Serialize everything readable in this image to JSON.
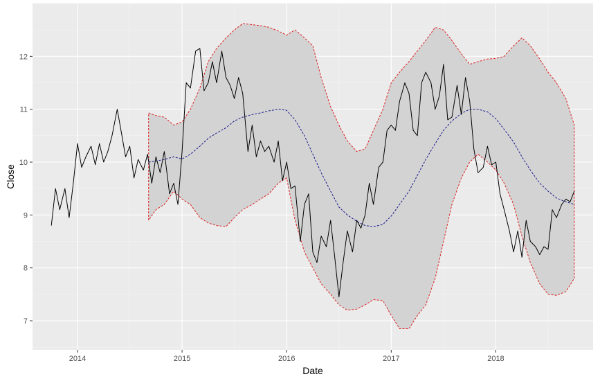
{
  "chart_data": {
    "type": "line",
    "title": "",
    "xlabel": "Date",
    "ylabel": "Close",
    "xlim": [
      2013.57,
      2018.93
    ],
    "ylim": [
      6.45,
      13.0
    ],
    "x_ticks": [
      {
        "value": 2014,
        "label": "2014"
      },
      {
        "value": 2015,
        "label": "2015"
      },
      {
        "value": 2016,
        "label": "2016"
      },
      {
        "value": 2017,
        "label": "2017"
      },
      {
        "value": 2018,
        "label": "2018"
      }
    ],
    "y_ticks": [
      {
        "value": 7,
        "label": "7"
      },
      {
        "value": 8,
        "label": "8"
      },
      {
        "value": 9,
        "label": "9"
      },
      {
        "value": 10,
        "label": "10"
      },
      {
        "value": 11,
        "label": "11"
      },
      {
        "value": 12,
        "label": "12"
      }
    ],
    "grid": true,
    "legend": "none",
    "colors": {
      "panel_background": "#ebebeb",
      "grid_major": "#ffffff",
      "grid_minor": "#f5f5f5",
      "band_fill": "#d3d3d3",
      "band_edge": "#dd2222",
      "close_line": "#000000",
      "mid_line": "#1a1a8c"
    },
    "series": [
      {
        "role": "close",
        "style": "solid",
        "x": [
          2013.75,
          2013.79,
          2013.83,
          2013.88,
          2013.92,
          2013.96,
          2014.0,
          2014.04,
          2014.08,
          2014.13,
          2014.17,
          2014.21,
          2014.25,
          2014.29,
          2014.33,
          2014.38,
          2014.42,
          2014.46,
          2014.5,
          2014.54,
          2014.58,
          2014.63,
          2014.67,
          2014.71,
          2014.75,
          2014.79,
          2014.83,
          2014.88,
          2014.92,
          2014.96,
          2015.0,
          2015.04,
          2015.08,
          2015.13,
          2015.17,
          2015.21,
          2015.25,
          2015.29,
          2015.33,
          2015.38,
          2015.42,
          2015.46,
          2015.5,
          2015.54,
          2015.58,
          2015.63,
          2015.67,
          2015.71,
          2015.75,
          2015.79,
          2015.83,
          2015.88,
          2015.92,
          2015.96,
          2016.0,
          2016.04,
          2016.08,
          2016.13,
          2016.17,
          2016.21,
          2016.25,
          2016.29,
          2016.33,
          2016.38,
          2016.42,
          2016.46,
          2016.5,
          2016.54,
          2016.58,
          2016.63,
          2016.67,
          2016.71,
          2016.75,
          2016.79,
          2016.83,
          2016.88,
          2016.92,
          2016.96,
          2017.0,
          2017.04,
          2017.08,
          2017.13,
          2017.17,
          2017.21,
          2017.25,
          2017.29,
          2017.33,
          2017.38,
          2017.42,
          2017.46,
          2017.5,
          2017.54,
          2017.58,
          2017.63,
          2017.67,
          2017.71,
          2017.75,
          2017.79,
          2017.83,
          2017.88,
          2017.92,
          2017.96,
          2018.0,
          2018.04,
          2018.08,
          2018.13,
          2018.17,
          2018.21,
          2018.25,
          2018.29,
          2018.33,
          2018.38,
          2018.42,
          2018.46,
          2018.5,
          2018.54,
          2018.58,
          2018.63,
          2018.67,
          2018.71,
          2018.75
        ],
        "y": [
          8.8,
          9.5,
          9.1,
          9.5,
          8.95,
          9.6,
          10.35,
          9.9,
          10.1,
          10.3,
          9.95,
          10.35,
          10.0,
          10.2,
          10.5,
          11.0,
          10.55,
          10.1,
          10.3,
          9.7,
          10.05,
          9.85,
          10.15,
          9.6,
          10.1,
          9.8,
          10.2,
          9.4,
          9.6,
          9.2,
          10.2,
          11.5,
          11.4,
          12.1,
          12.15,
          11.35,
          11.5,
          11.9,
          11.5,
          12.1,
          11.6,
          11.45,
          11.2,
          11.6,
          11.3,
          10.2,
          10.7,
          10.1,
          10.4,
          10.2,
          10.3,
          10.0,
          10.4,
          9.65,
          10.0,
          9.5,
          9.55,
          8.5,
          9.2,
          9.4,
          8.3,
          8.1,
          8.6,
          8.4,
          8.9,
          8.2,
          7.45,
          8.1,
          8.7,
          8.3,
          8.9,
          8.75,
          9.0,
          9.6,
          9.2,
          9.9,
          10.0,
          10.6,
          10.7,
          10.6,
          11.15,
          11.5,
          11.3,
          10.6,
          10.5,
          11.5,
          11.7,
          11.5,
          11.0,
          11.25,
          11.85,
          10.8,
          10.85,
          11.45,
          10.9,
          11.6,
          11.15,
          10.25,
          9.8,
          9.9,
          10.3,
          9.95,
          10.0,
          9.4,
          9.1,
          8.7,
          8.3,
          8.7,
          8.2,
          8.9,
          8.5,
          8.4,
          8.25,
          8.4,
          8.35,
          9.1,
          8.95,
          9.2,
          9.3,
          9.25,
          9.45
        ]
      },
      {
        "role": "band-center",
        "style": "dashed",
        "x": [
          2014.68,
          2014.75,
          2014.83,
          2014.92,
          2015.0,
          2015.08,
          2015.17,
          2015.25,
          2015.33,
          2015.42,
          2015.5,
          2015.58,
          2015.67,
          2015.75,
          2015.83,
          2015.92,
          2016.0,
          2016.08,
          2016.17,
          2016.25,
          2016.33,
          2016.42,
          2016.5,
          2016.58,
          2016.67,
          2016.75,
          2016.83,
          2016.92,
          2017.0,
          2017.08,
          2017.17,
          2017.25,
          2017.33,
          2017.42,
          2017.5,
          2017.58,
          2017.67,
          2017.75,
          2017.83,
          2017.92,
          2018.0,
          2018.08,
          2018.17,
          2018.25,
          2018.33,
          2018.42,
          2018.5,
          2018.58,
          2018.67,
          2018.75
        ],
        "y": [
          10.0,
          10.02,
          10.05,
          10.1,
          10.06,
          10.15,
          10.3,
          10.45,
          10.55,
          10.65,
          10.78,
          10.85,
          10.9,
          10.93,
          10.97,
          11.0,
          10.98,
          10.8,
          10.5,
          10.15,
          9.8,
          9.45,
          9.15,
          9.0,
          8.88,
          8.8,
          8.78,
          8.82,
          8.98,
          9.2,
          9.45,
          9.75,
          10.05,
          10.35,
          10.6,
          10.78,
          10.92,
          11.0,
          11.0,
          10.95,
          10.82,
          10.62,
          10.38,
          10.1,
          9.85,
          9.6,
          9.45,
          9.32,
          9.25,
          9.2
        ]
      },
      {
        "role": "band-upper",
        "style": "dashed",
        "x": [
          2014.68,
          2014.75,
          2014.83,
          2014.92,
          2015.0,
          2015.08,
          2015.17,
          2015.25,
          2015.33,
          2015.42,
          2015.5,
          2015.58,
          2015.67,
          2015.75,
          2015.83,
          2015.92,
          2016.0,
          2016.08,
          2016.17,
          2016.25,
          2016.33,
          2016.42,
          2016.5,
          2016.58,
          2016.67,
          2016.75,
          2016.83,
          2016.92,
          2017.0,
          2017.08,
          2017.17,
          2017.25,
          2017.33,
          2017.42,
          2017.5,
          2017.58,
          2017.67,
          2017.75,
          2017.83,
          2017.92,
          2018.0,
          2018.08,
          2018.17,
          2018.25,
          2018.33,
          2018.42,
          2018.5,
          2018.58,
          2018.67,
          2018.75
        ],
        "y": [
          10.93,
          10.88,
          10.85,
          10.7,
          10.76,
          11.0,
          11.4,
          11.9,
          12.15,
          12.35,
          12.5,
          12.62,
          12.6,
          12.58,
          12.55,
          12.48,
          12.4,
          12.5,
          12.35,
          12.2,
          11.6,
          11.05,
          10.7,
          10.4,
          10.2,
          10.25,
          10.6,
          11.0,
          11.5,
          11.7,
          11.9,
          12.1,
          12.3,
          12.55,
          12.5,
          12.3,
          12.05,
          11.85,
          11.9,
          11.95,
          11.96,
          12.0,
          12.2,
          12.35,
          12.2,
          11.95,
          11.7,
          11.5,
          11.2,
          10.7
        ]
      },
      {
        "role": "band-lower",
        "style": "dashed",
        "x": [
          2014.68,
          2014.75,
          2014.83,
          2014.92,
          2015.0,
          2015.08,
          2015.17,
          2015.25,
          2015.33,
          2015.42,
          2015.5,
          2015.58,
          2015.67,
          2015.75,
          2015.83,
          2015.92,
          2016.0,
          2016.08,
          2016.17,
          2016.25,
          2016.33,
          2016.42,
          2016.5,
          2016.58,
          2016.67,
          2016.75,
          2016.83,
          2016.92,
          2017.0,
          2017.08,
          2017.17,
          2017.25,
          2017.33,
          2017.42,
          2017.5,
          2017.58,
          2017.67,
          2017.75,
          2017.83,
          2017.92,
          2018.0,
          2018.08,
          2018.17,
          2018.25,
          2018.33,
          2018.42,
          2018.5,
          2018.58,
          2018.67,
          2018.75
        ],
        "y": [
          8.9,
          9.1,
          9.2,
          9.45,
          9.3,
          9.2,
          8.95,
          8.85,
          8.8,
          8.78,
          8.95,
          9.1,
          9.2,
          9.3,
          9.4,
          9.6,
          9.7,
          8.9,
          8.3,
          8.0,
          7.7,
          7.5,
          7.3,
          7.2,
          7.22,
          7.3,
          7.4,
          7.38,
          7.1,
          6.85,
          6.85,
          7.1,
          7.3,
          7.8,
          8.5,
          9.2,
          9.7,
          10.0,
          10.15,
          10.0,
          9.85,
          9.6,
          9.2,
          8.6,
          8.1,
          7.7,
          7.5,
          7.48,
          7.55,
          7.8
        ]
      }
    ]
  }
}
